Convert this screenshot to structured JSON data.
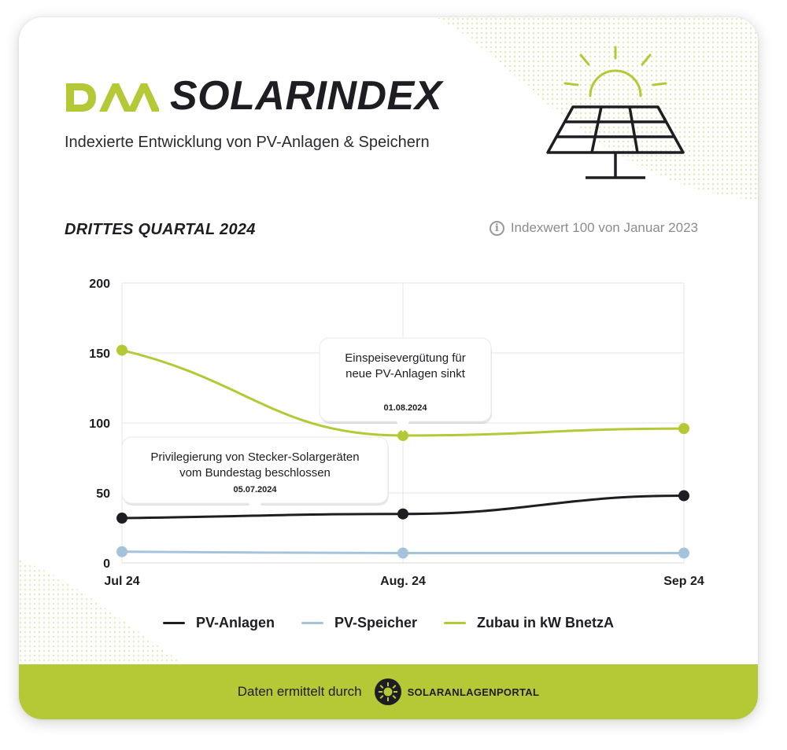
{
  "header": {
    "brand_name": "SOLARINDEX",
    "logo_text": "DAA",
    "subtitle": "Indexierte Entwicklung von PV-Anlagen & Speichern"
  },
  "section": {
    "quarter_label": "DRITTES QUARTAL 2024",
    "index_note": "Indexwert 100 von Januar 2023"
  },
  "colors": {
    "brand_green": "#b5c835",
    "dark": "#1f1d22",
    "light_blue": "#a6c3dc",
    "grid": "#e6e6e8"
  },
  "icons": [
    "info-icon",
    "solar-panel-icon",
    "sun-icon",
    "solaranlagenportal-logo-icon"
  ],
  "chart_data": {
    "type": "line",
    "x": [
      "Jul 24",
      "Aug. 24",
      "Sep 24"
    ],
    "ylim": [
      0,
      200
    ],
    "yticks": [
      0,
      50,
      100,
      150,
      200
    ],
    "grid": true,
    "legend_position": "bottom-center",
    "series": [
      {
        "name": "PV-Anlagen",
        "color": "#1f1d22",
        "values": [
          32,
          35,
          48
        ]
      },
      {
        "name": "PV-Speicher",
        "color": "#a6c3dc",
        "values": [
          8,
          7,
          7
        ]
      },
      {
        "name": "Zubau in kW BnetzA",
        "color": "#b5c835",
        "values": [
          152,
          91,
          96
        ]
      }
    ],
    "annotations": [
      {
        "text_line1": "Einspeisevergütung für",
        "text_line2": "neue PV-Anlagen sinkt",
        "date": "01.08.2024"
      },
      {
        "text_line1": "Privilegierung von Stecker-Solargeräten",
        "text_line2": "vom Bundestag beschlossen",
        "date": "05.07.2024"
      }
    ]
  },
  "footer": {
    "text": "Daten ermittelt durch",
    "portal_name": "SOLARANLAGENPORTAL"
  }
}
